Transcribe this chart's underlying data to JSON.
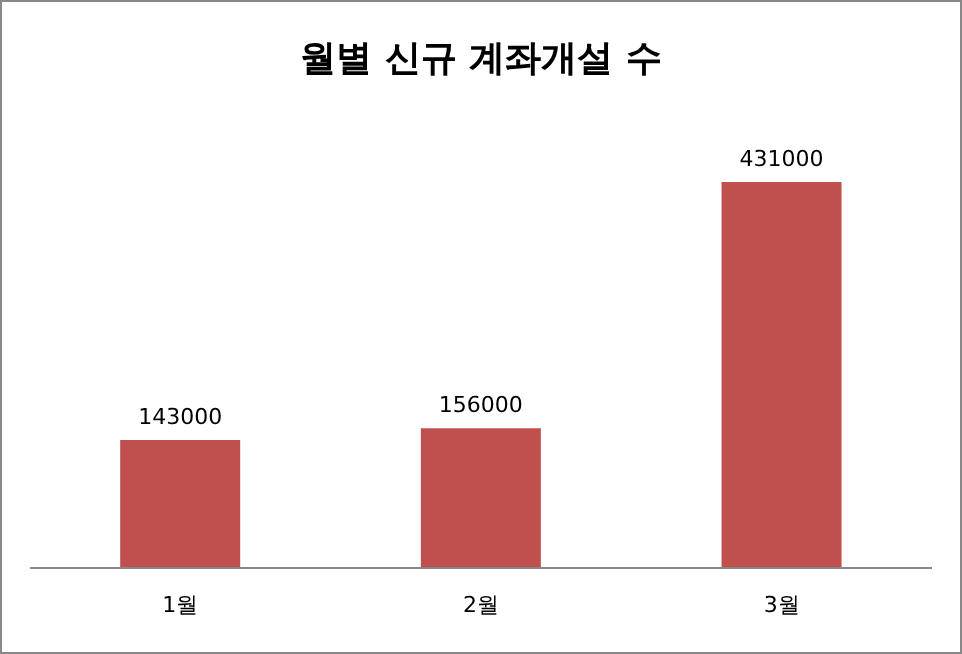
{
  "chart_data": {
    "type": "bar",
    "title": "월별 신규 계좌개설 수",
    "categories": [
      "1월",
      "2월",
      "3월"
    ],
    "values": [
      143000,
      156000,
      431000
    ],
    "color": "#c0504d",
    "data_labels": true
  }
}
